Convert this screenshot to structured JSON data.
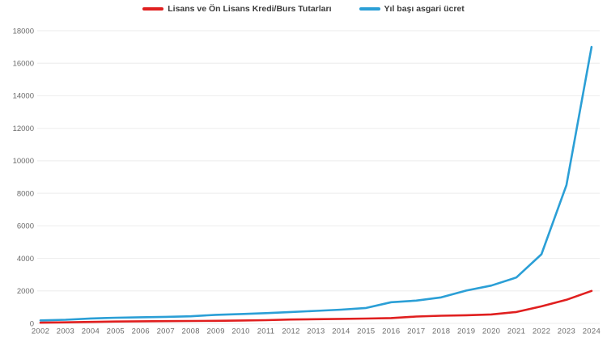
{
  "chart_data": {
    "type": "line",
    "title": "",
    "xlabel": "",
    "ylabel": "",
    "x": [
      2002,
      2003,
      2004,
      2005,
      2006,
      2007,
      2008,
      2009,
      2010,
      2011,
      2012,
      2013,
      2014,
      2015,
      2016,
      2017,
      2018,
      2019,
      2020,
      2021,
      2022,
      2023,
      2024
    ],
    "series": [
      {
        "name": "Lisans ve Ön Lisans Kredi/Burs Tutarları",
        "color": "#e01f1f",
        "values": [
          45,
          65,
          90,
          115,
          130,
          140,
          150,
          160,
          180,
          200,
          240,
          260,
          280,
          300,
          330,
          425,
          470,
          500,
          550,
          700,
          1050,
          1450,
          2000
        ]
      },
      {
        "name": "Yıl başı asgari ücret",
        "color": "#2b9fd6",
        "values": [
          184,
          226,
          303,
          350,
          380,
          403,
          436,
          527,
          577,
          630,
          701,
          773,
          846,
          949,
          1301,
          1404,
          1603,
          2021,
          2325,
          2826,
          4253,
          8507,
          17002
        ]
      }
    ],
    "ylim": [
      0,
      18000
    ],
    "ytick_step": 2000,
    "ytick_labels": [
      "0",
      "2000",
      "4000",
      "6000",
      "8000",
      "10000",
      "12000",
      "14000",
      "16000",
      "18000"
    ],
    "grid": "horizontal",
    "legend_position": "top-center",
    "background_color": "#ffffff",
    "gridline_color": "#efefef",
    "tick_label_color": "#6b6b6b",
    "legend_text_color": "#3c3c3c"
  }
}
